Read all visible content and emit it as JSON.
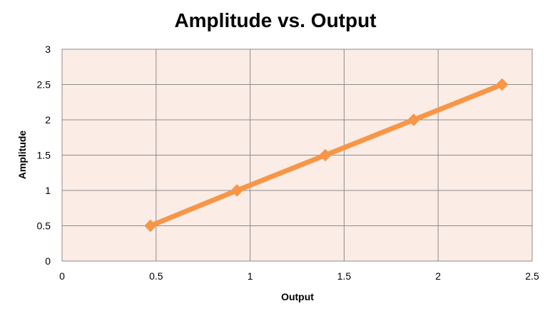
{
  "colors": {
    "plot_background": "#fbece6",
    "grid": "#8c8c8c",
    "series_line": "#f79646",
    "marker": "#f79646"
  },
  "chart_data": {
    "type": "line",
    "title": "Amplitude vs. Output",
    "xlabel": "Output",
    "ylabel": "Amplitude",
    "xlim": [
      0,
      2.5
    ],
    "ylim": [
      0,
      3
    ],
    "xticks": [
      "0",
      "0.5",
      "1",
      "1.5",
      "2",
      "2.5"
    ],
    "yticks": [
      "0",
      "0.5",
      "1",
      "1.5",
      "2",
      "2.5",
      "3"
    ],
    "grid": true,
    "series": [
      {
        "x": [
          0.47,
          0.93,
          1.4,
          1.87,
          2.34
        ],
        "y": [
          0.5,
          1.0,
          1.5,
          2.0,
          2.5
        ],
        "marker": "diamond"
      }
    ]
  }
}
